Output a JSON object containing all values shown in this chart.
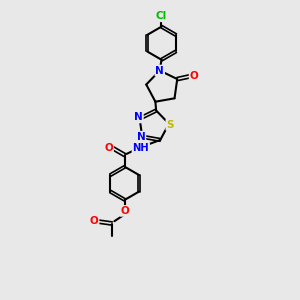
{
  "background_color": "#e8e8e8",
  "bond_color": "#000000",
  "atom_colors": {
    "N": "#0000ff",
    "O": "#ff0000",
    "S": "#bbbb00",
    "Cl": "#00bb00",
    "H": "#555555",
    "C": "#000000"
  },
  "figsize": [
    3.0,
    3.0
  ],
  "dpi": 100
}
